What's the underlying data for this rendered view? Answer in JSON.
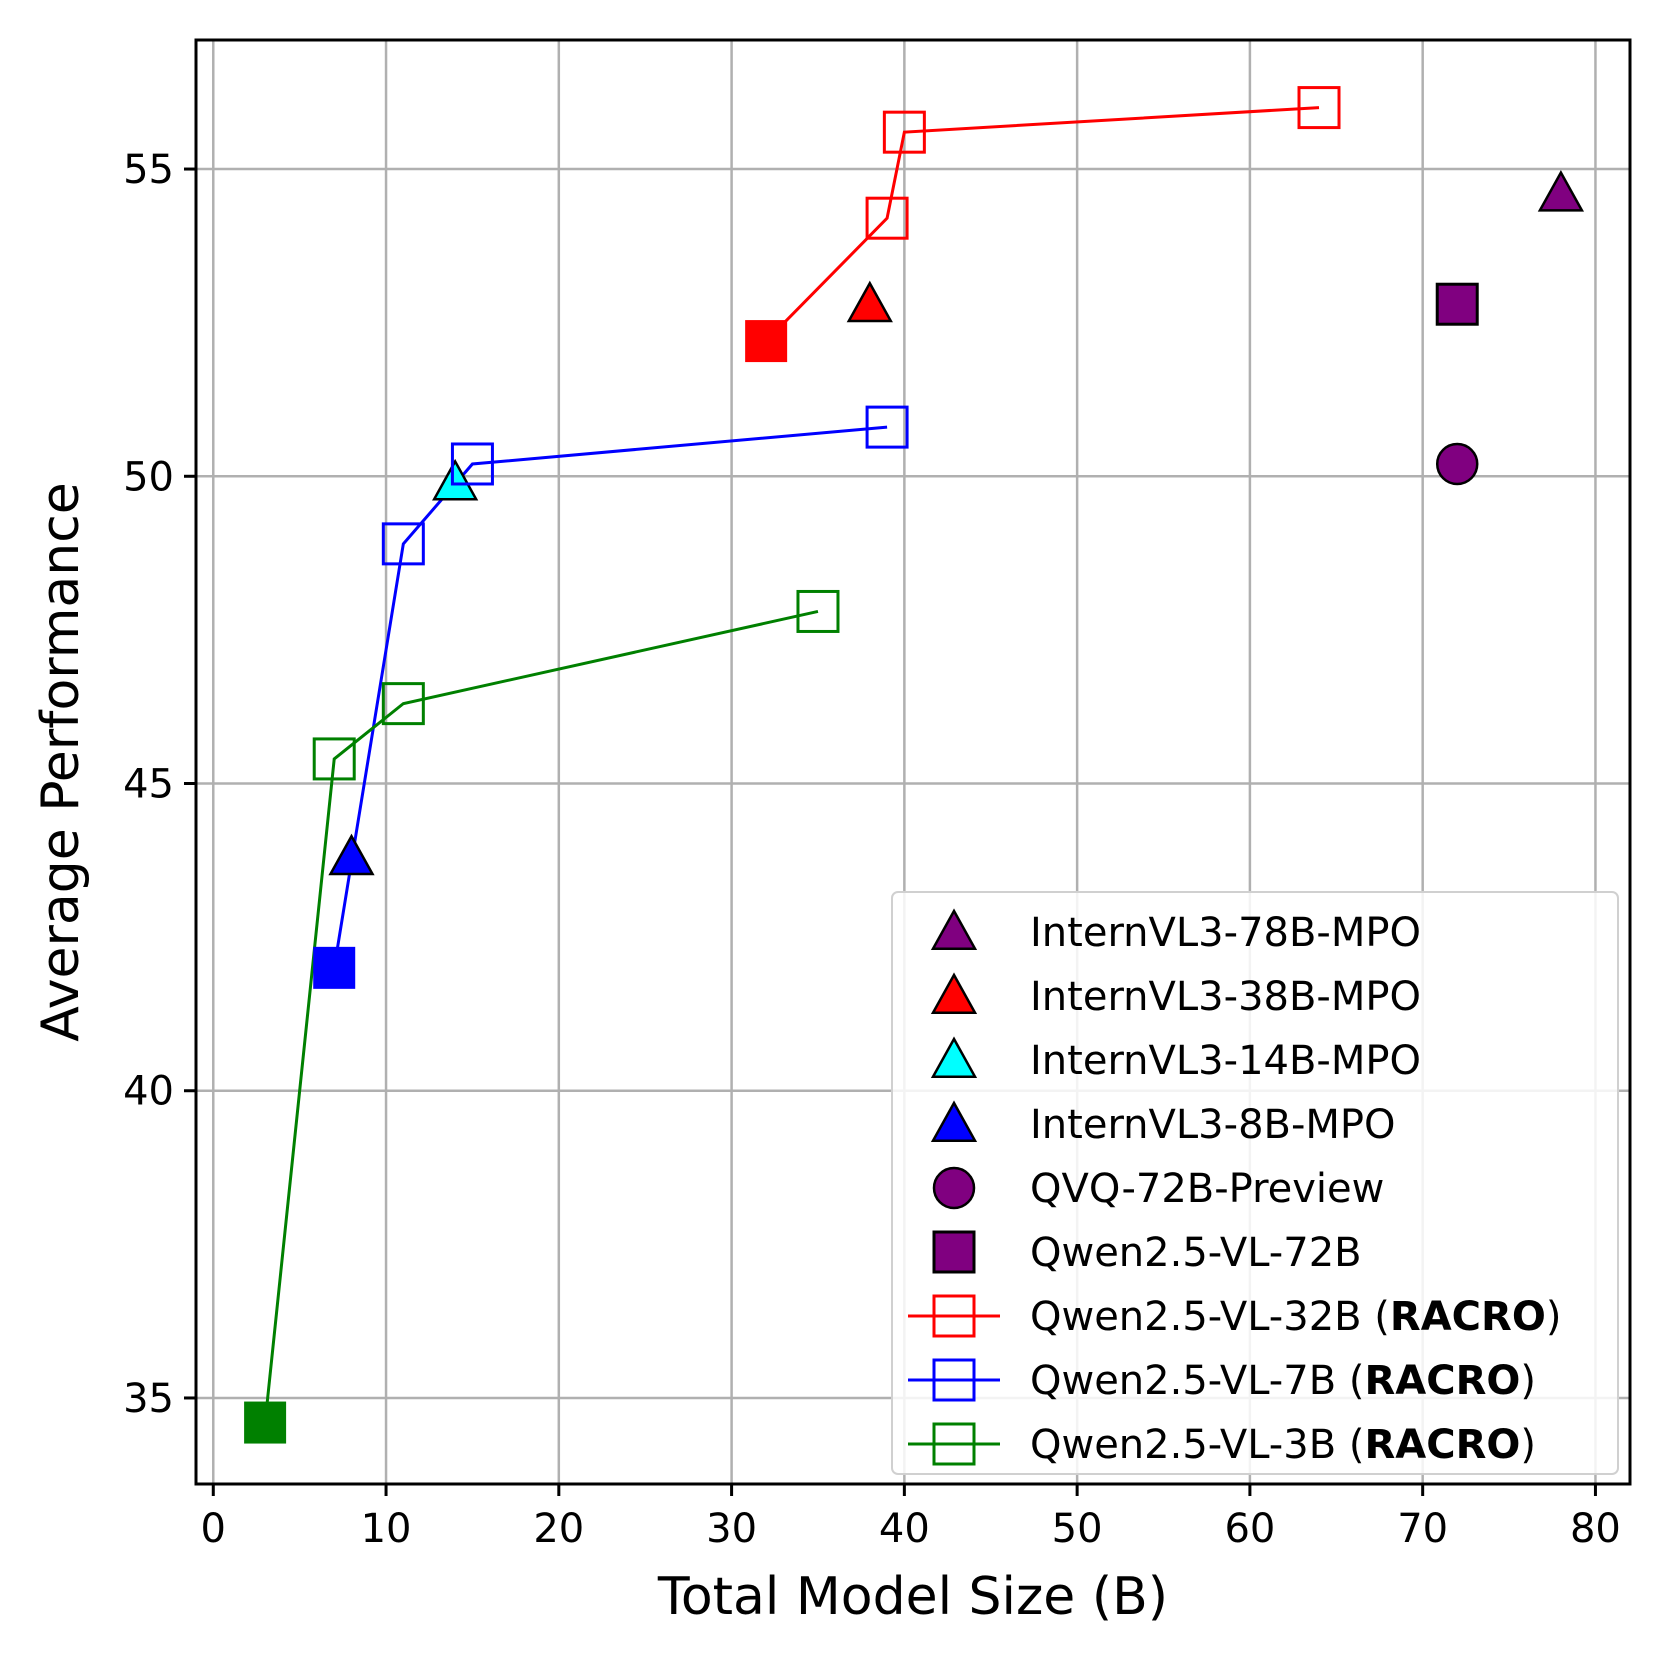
{
  "chart_data": {
    "type": "scatter",
    "xlabel": "Total Model Size (B)",
    "ylabel": "Average Performance",
    "xlim": [
      -1,
      82
    ],
    "ylim": [
      33.6,
      57.1
    ],
    "xticks": [
      0,
      10,
      20,
      30,
      40,
      50,
      60,
      70,
      80
    ],
    "yticks": [
      35,
      40,
      45,
      50,
      55
    ],
    "grid": true,
    "legend_position": "lower-right",
    "series": [
      {
        "name": "InternVL3-78B-MPO",
        "kind": "scatter",
        "marker": "triangle",
        "color": "#800080",
        "edge": "#000000",
        "points": [
          [
            78,
            54.6
          ]
        ]
      },
      {
        "name": "InternVL3-38B-MPO",
        "kind": "scatter",
        "marker": "triangle",
        "color": "#ff0000",
        "edge": "#000000",
        "points": [
          [
            38,
            52.8
          ]
        ]
      },
      {
        "name": "InternVL3-14B-MPO",
        "kind": "scatter",
        "marker": "triangle",
        "color": "#00ffff",
        "edge": "#000000",
        "points": [
          [
            14,
            49.9
          ]
        ]
      },
      {
        "name": "InternVL3-8B-MPO",
        "kind": "scatter",
        "marker": "triangle",
        "color": "#0000ff",
        "edge": "#000000",
        "points": [
          [
            8,
            43.8
          ]
        ]
      },
      {
        "name": "QVQ-72B-Preview",
        "kind": "scatter",
        "marker": "circle",
        "color": "#800080",
        "edge": "#000000",
        "points": [
          [
            72,
            50.2
          ]
        ]
      },
      {
        "name": "Qwen2.5-VL-72B",
        "kind": "scatter",
        "marker": "square",
        "color": "#800080",
        "edge": "#000000",
        "points": [
          [
            72,
            52.8
          ]
        ]
      },
      {
        "name": "Qwen2.5-VL-32B (RACRO)",
        "legend_prefix": "Qwen2.5-VL-32B (",
        "legend_bold": "RACRO",
        "legend_suffix": ")",
        "kind": "line",
        "marker": "open-square",
        "color": "#ff0000",
        "base": [
          32,
          52.2
        ],
        "points": [
          [
            32,
            52.2
          ],
          [
            39,
            54.2
          ],
          [
            40,
            55.6
          ],
          [
            64,
            56.0
          ]
        ]
      },
      {
        "name": "Qwen2.5-VL-7B (RACRO)",
        "legend_prefix": "Qwen2.5-VL-7B (",
        "legend_bold": "RACRO",
        "legend_suffix": ")",
        "kind": "line",
        "marker": "open-square",
        "color": "#0000ff",
        "base": [
          7,
          42.0
        ],
        "points": [
          [
            7,
            42.0
          ],
          [
            11,
            48.9
          ],
          [
            15,
            50.2
          ],
          [
            39,
            50.8
          ]
        ]
      },
      {
        "name": "Qwen2.5-VL-3B (RACRO)",
        "legend_prefix": "Qwen2.5-VL-3B (",
        "legend_bold": "RACRO",
        "legend_suffix": ")",
        "kind": "line",
        "marker": "open-square",
        "color": "#008000",
        "base": [
          3,
          34.6
        ],
        "points": [
          [
            3,
            34.6
          ],
          [
            7,
            45.4
          ],
          [
            11,
            46.3
          ],
          [
            35,
            47.8
          ]
        ]
      }
    ]
  }
}
